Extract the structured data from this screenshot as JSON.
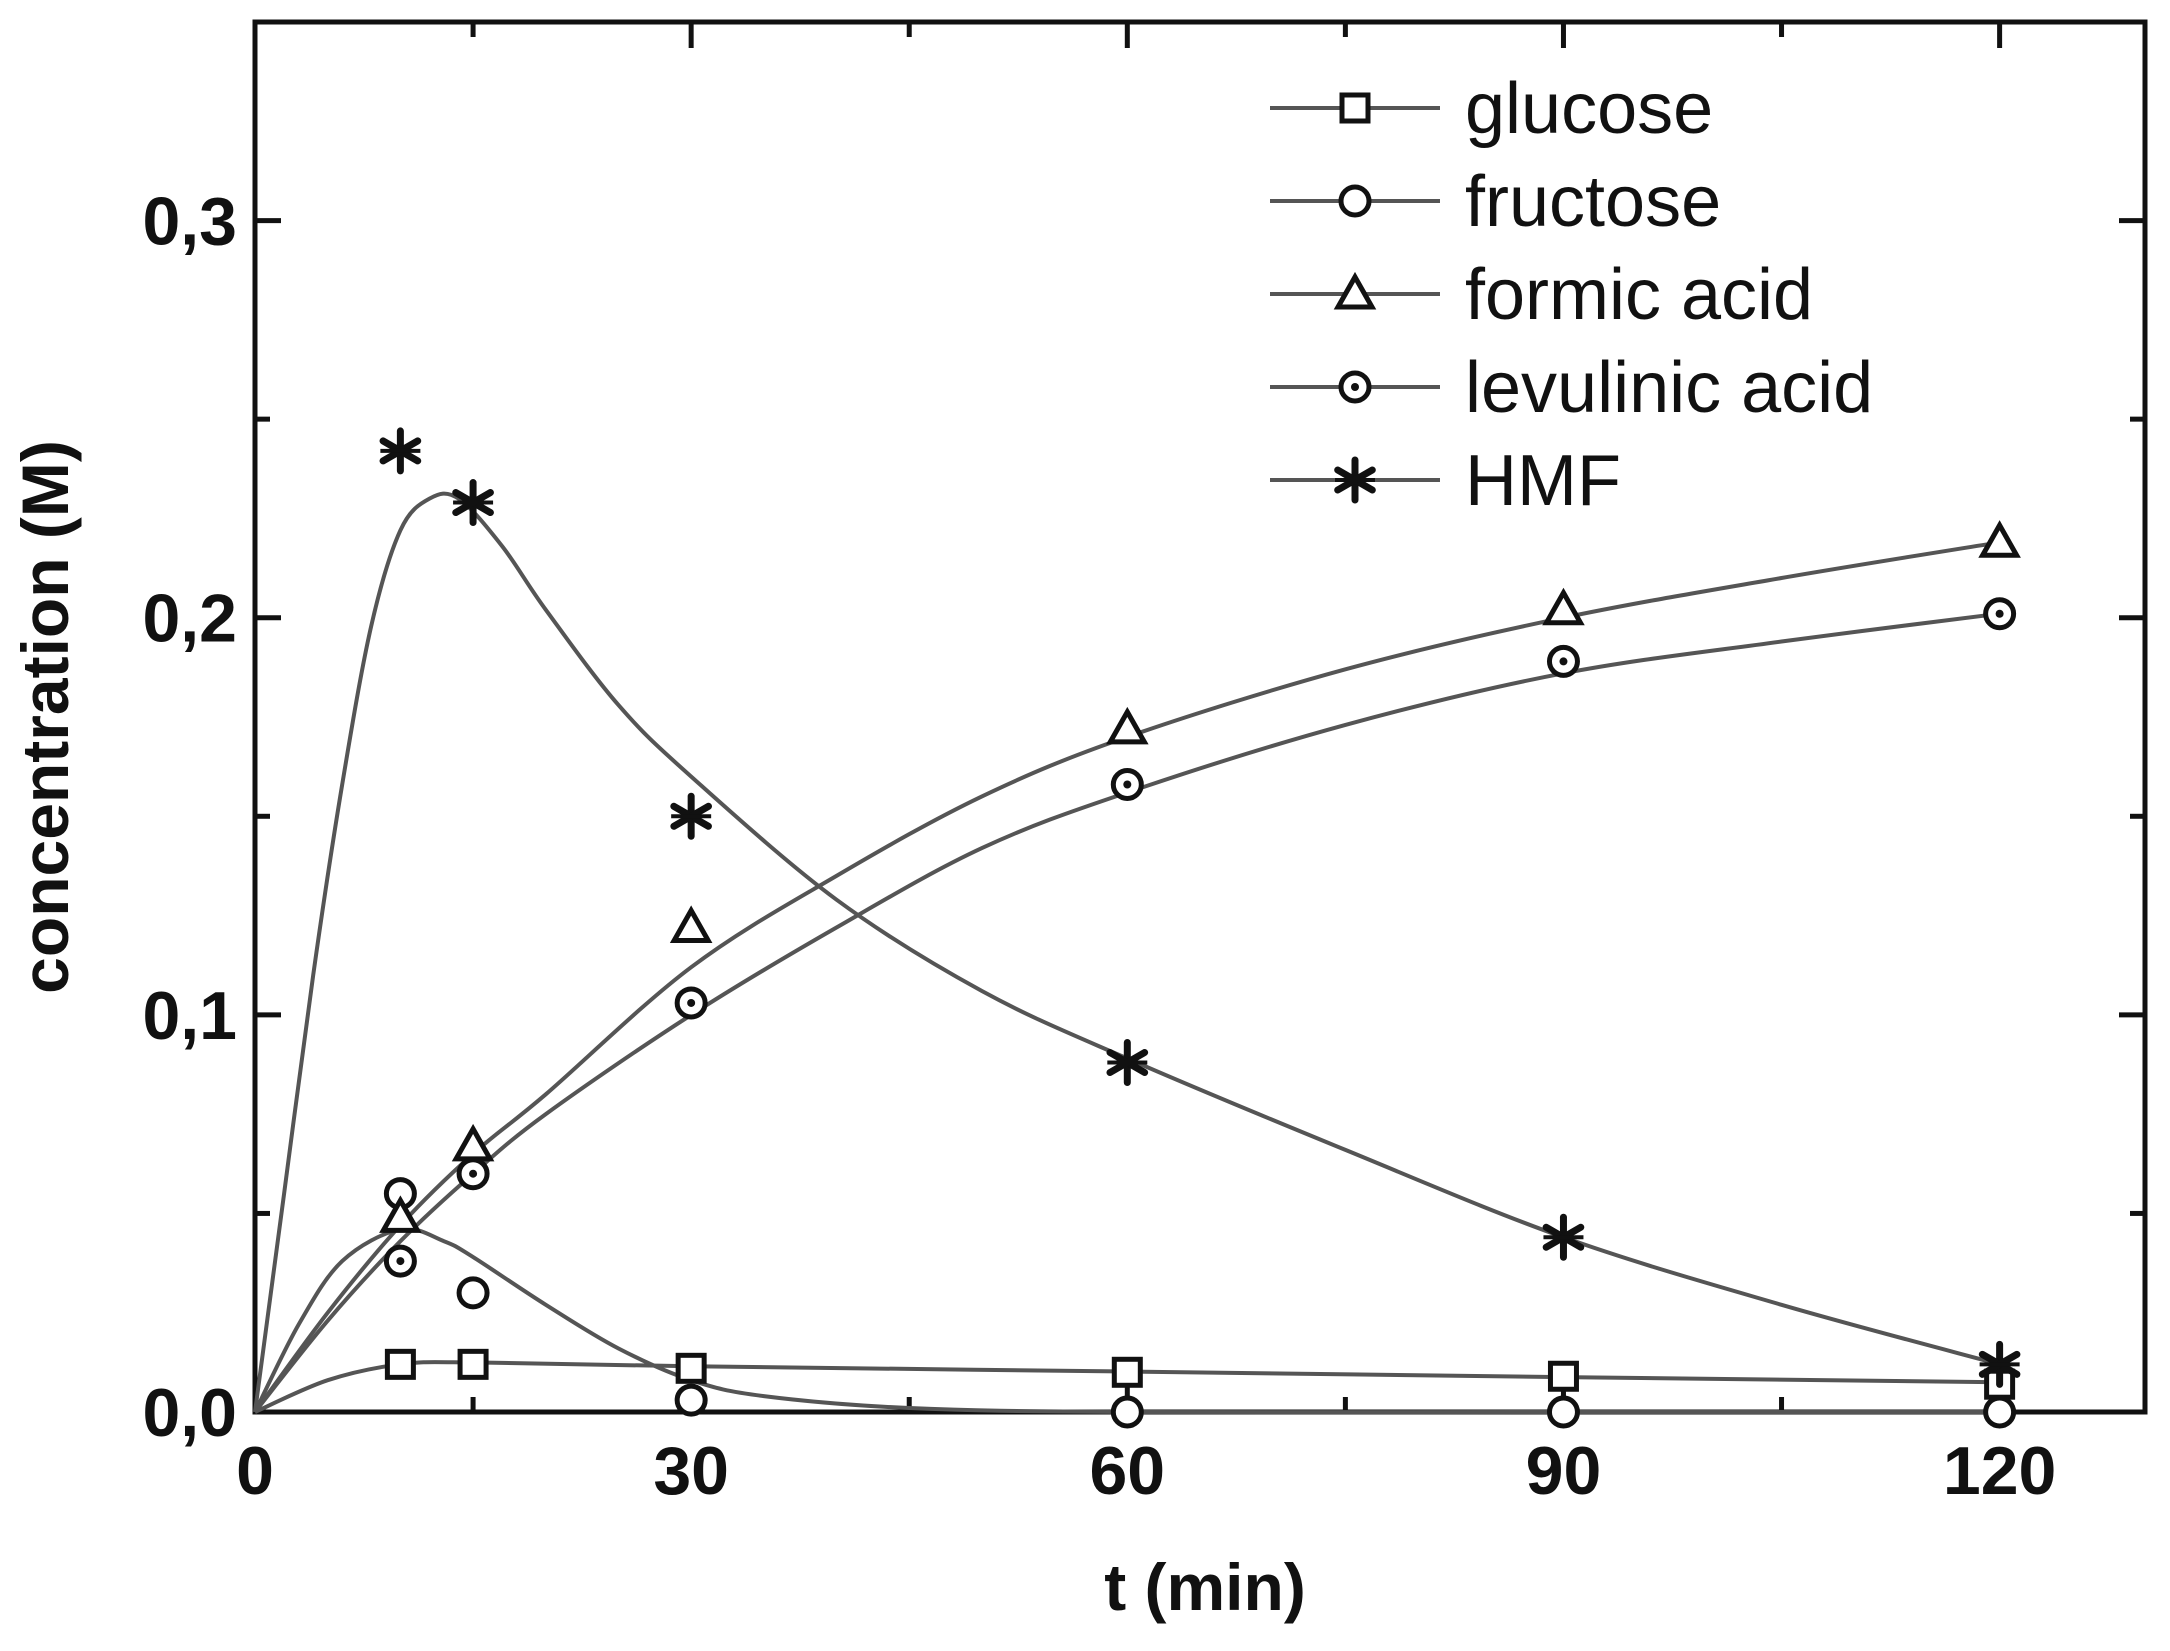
{
  "chart_data": {
    "type": "line",
    "title": "",
    "xlabel": "t (min)",
    "ylabel": "concentration (M)",
    "xlim": [
      0,
      130
    ],
    "ylim": [
      0,
      0.35
    ],
    "x_ticks": [
      0,
      30,
      60,
      90,
      120
    ],
    "x_tick_labels": [
      "0",
      "30",
      "60",
      "90",
      "120"
    ],
    "y_ticks": [
      0,
      0.1,
      0.2,
      0.3
    ],
    "y_tick_labels": [
      "0,0",
      "0,1",
      "0,2",
      "0,3"
    ],
    "grid": false,
    "legend_position": "top-right",
    "line_color": "#555555",
    "marker_color": "#111111",
    "series": [
      {
        "name": "glucose",
        "marker": "square",
        "points": [
          [
            10,
            0.012
          ],
          [
            15,
            0.012
          ],
          [
            30,
            0.011
          ],
          [
            60,
            0.01
          ],
          [
            90,
            0.009
          ],
          [
            120,
            0.007
          ]
        ],
        "fit": [
          [
            0,
            0
          ],
          [
            5,
            0.008
          ],
          [
            10,
            0.012
          ],
          [
            15,
            0.0125
          ],
          [
            30,
            0.0115
          ],
          [
            60,
            0.0102
          ],
          [
            90,
            0.0088
          ],
          [
            120,
            0.0075
          ]
        ]
      },
      {
        "name": "fructose",
        "marker": "circle",
        "points": [
          [
            10,
            0.055
          ],
          [
            15,
            0.03
          ],
          [
            30,
            0.003
          ],
          [
            60,
            0.0
          ],
          [
            90,
            0.0
          ],
          [
            120,
            0.0
          ]
        ],
        "fit": [
          [
            0,
            0
          ],
          [
            3,
            0.022
          ],
          [
            6,
            0.038
          ],
          [
            10,
            0.046
          ],
          [
            13,
            0.043
          ],
          [
            15,
            0.039
          ],
          [
            20,
            0.027
          ],
          [
            25,
            0.016
          ],
          [
            30,
            0.008
          ],
          [
            35,
            0.004
          ],
          [
            45,
            0.001
          ],
          [
            60,
            0.0
          ],
          [
            90,
            0.0
          ],
          [
            120,
            0.0
          ]
        ]
      },
      {
        "name": "formic acid",
        "marker": "triangle",
        "points": [
          [
            10,
            0.049
          ],
          [
            15,
            0.067
          ],
          [
            30,
            0.122
          ],
          [
            60,
            0.172
          ],
          [
            90,
            0.202
          ],
          [
            120,
            0.219
          ]
        ],
        "fit": [
          [
            0,
            0
          ],
          [
            5,
            0.025
          ],
          [
            10,
            0.047
          ],
          [
            15,
            0.065
          ],
          [
            20,
            0.08
          ],
          [
            30,
            0.112
          ],
          [
            40,
            0.135
          ],
          [
            50,
            0.155
          ],
          [
            60,
            0.17
          ],
          [
            75,
            0.187
          ],
          [
            90,
            0.2
          ],
          [
            105,
            0.21
          ],
          [
            120,
            0.219
          ]
        ]
      },
      {
        "name": "levulinic acid",
        "marker": "dotted-circle",
        "points": [
          [
            10,
            0.038
          ],
          [
            15,
            0.06
          ],
          [
            30,
            0.103
          ],
          [
            60,
            0.158
          ],
          [
            90,
            0.189
          ],
          [
            120,
            0.201
          ]
        ],
        "fit": [
          [
            0,
            0
          ],
          [
            5,
            0.023
          ],
          [
            10,
            0.043
          ],
          [
            15,
            0.06
          ],
          [
            20,
            0.075
          ],
          [
            30,
            0.1
          ],
          [
            40,
            0.122
          ],
          [
            50,
            0.142
          ],
          [
            60,
            0.156
          ],
          [
            75,
            0.173
          ],
          [
            90,
            0.186
          ],
          [
            105,
            0.194
          ],
          [
            120,
            0.201
          ]
        ]
      },
      {
        "name": "HMF",
        "marker": "asterisk",
        "points": [
          [
            10,
            0.242
          ],
          [
            15,
            0.229
          ],
          [
            30,
            0.15
          ],
          [
            60,
            0.088
          ],
          [
            90,
            0.044
          ],
          [
            120,
            0.012
          ]
        ],
        "fit": [
          [
            0,
            0
          ],
          [
            2,
            0.055
          ],
          [
            4,
            0.11
          ],
          [
            6,
            0.158
          ],
          [
            8,
            0.198
          ],
          [
            10,
            0.222
          ],
          [
            12,
            0.23
          ],
          [
            14,
            0.23
          ],
          [
            17,
            0.218
          ],
          [
            20,
            0.202
          ],
          [
            25,
            0.178
          ],
          [
            30,
            0.16
          ],
          [
            40,
            0.129
          ],
          [
            50,
            0.106
          ],
          [
            60,
            0.089
          ],
          [
            75,
            0.066
          ],
          [
            90,
            0.044
          ],
          [
            105,
            0.027
          ],
          [
            120,
            0.012
          ]
        ]
      }
    ]
  }
}
